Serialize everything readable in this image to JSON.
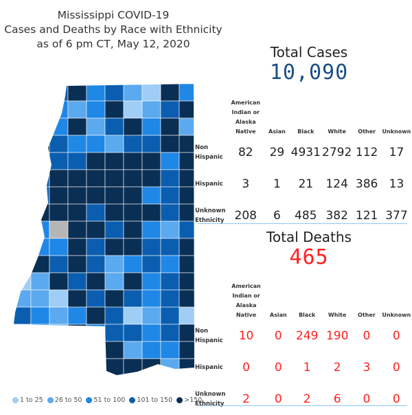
{
  "title": [
    "Mississippi COVID-19",
    "Cases and Deaths by Race with Ethnicity",
    "as of 6 pm CT, May 12, 2020"
  ],
  "legend": [
    {
      "label": "1 to 25",
      "color": "#9fcdf6"
    },
    {
      "label": "26 to 50",
      "color": "#5ba9ee"
    },
    {
      "label": "51 to 100",
      "color": "#1f87e6"
    },
    {
      "label": "101 to 150",
      "color": "#0b5eaf"
    },
    {
      "label": ">150",
      "color": "#0a2f55"
    }
  ],
  "no_data_color": "#b5b5b5",
  "columns": [
    "American Indian or Alaska Native",
    "Asian",
    "Black",
    "White",
    "Other",
    "Unknown"
  ],
  "cases": {
    "title": "Total Cases",
    "total": "10,090",
    "color": "#1a4f86",
    "rows": [
      {
        "label": "Non Hispanic",
        "values": [
          "82",
          "29",
          "4931",
          "2792",
          "112",
          "17"
        ]
      },
      {
        "label": "Hispanic",
        "values": [
          "3",
          "1",
          "21",
          "124",
          "386",
          "13"
        ]
      },
      {
        "label": "Unknown Ethnicity",
        "values": [
          "208",
          "6",
          "485",
          "382",
          "121",
          "377"
        ]
      }
    ]
  },
  "deaths": {
    "title": "Total Deaths",
    "total": "465",
    "color": "#ff2020",
    "rows": [
      {
        "label": "Non Hispanic",
        "values": [
          "10",
          "0",
          "249",
          "190",
          "0",
          "0"
        ]
      },
      {
        "label": "Hispanic",
        "values": [
          "0",
          "0",
          "1",
          "2",
          "3",
          "0"
        ]
      },
      {
        "label": "Unknown Ethnicity",
        "values": [
          "2",
          "0",
          "2",
          "6",
          "0",
          "0"
        ]
      }
    ]
  }
}
